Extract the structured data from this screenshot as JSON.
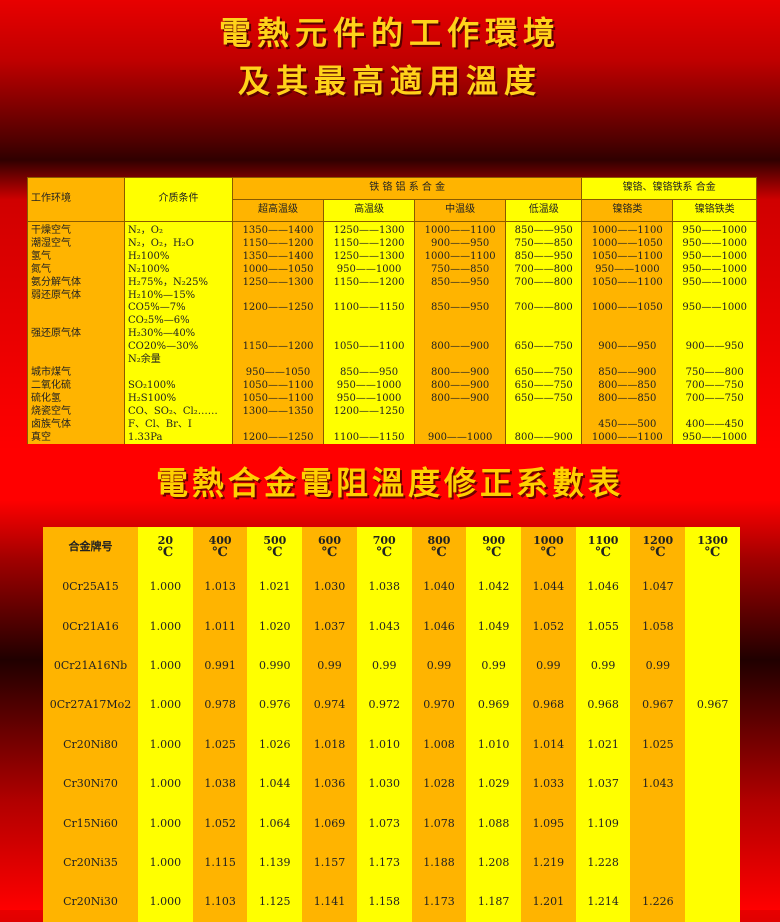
{
  "titles": {
    "main_line1": "電熱元件的工作環境",
    "main_line2": "及其最高適用溫度",
    "second": "電熱合金電阻溫度修正系數表"
  },
  "table1": {
    "headers": {
      "env": "工作环境",
      "medium": "介质条件",
      "fecral_group": "铁 铬 铝 系 合 金",
      "nicr_group": "镍铬、镍铬铁系 合金",
      "sub": [
        "超高温级",
        "高温级",
        "中温级",
        "低温级",
        "镍铬类",
        "镍铬铁类"
      ]
    },
    "rows": [
      [
        "干燥空气",
        "N₂，O₂",
        "1350——1400",
        "1250——1300",
        "1000——1100",
        "850——950",
        "1000——1100",
        "950——1000"
      ],
      [
        "潮湿空气",
        "N₂，O₂，H₂O",
        "1150——1200",
        "1150——1200",
        "900——950",
        "750——850",
        "1000——1050",
        "950——1000"
      ],
      [
        "氢气",
        "H₂100%",
        "1350——1400",
        "1250——1300",
        "1000——1100",
        "850——950",
        "1050——1100",
        "950——1000"
      ],
      [
        "氮气",
        "N₂100%",
        "1000——1050",
        "950——1000",
        "750——850",
        "700——800",
        "950——1000",
        "950——1000"
      ],
      [
        "氨分解气体",
        "H₂75%，N₂25%",
        "1250——1300",
        "1150——1200",
        "850——950",
        "700——800",
        "1050——1100",
        "950——1000"
      ],
      [
        "弱还原气体",
        "H₂10%—15%",
        "",
        "",
        "",
        "",
        "",
        ""
      ],
      [
        "",
        "CO5%—7%",
        "1200——1250",
        "1100——1150",
        "850——950",
        "700——800",
        "1000——1050",
        "950——1000"
      ],
      [
        "",
        "CO₂5%—6%",
        "",
        "",
        "",
        "",
        "",
        ""
      ],
      [
        "强还原气体",
        "H₂30%—40%",
        "",
        "",
        "",
        "",
        "",
        ""
      ],
      [
        "",
        "CO20%—30%",
        "1150——1200",
        "1050——1100",
        "800——900",
        "650——750",
        "900——950",
        "900——950"
      ],
      [
        "",
        "N₂余量",
        "",
        "",
        "",
        "",
        "",
        ""
      ],
      [
        "城市煤气",
        "",
        "950——1050",
        "850——950",
        "800——900",
        "650——750",
        "850——900",
        "750——800"
      ],
      [
        "二氧化硫",
        "SO₂100%",
        "1050——1100",
        "950——1000",
        "800——900",
        "650——750",
        "800——850",
        "700——750"
      ],
      [
        "硫化氢",
        "H₂S100%",
        "1050——1100",
        "950——1000",
        "800——900",
        "650——750",
        "800——850",
        "700——750"
      ],
      [
        "烧瓷空气",
        "CO、SO₂、Cl₂……",
        "1300——1350",
        "1200——1250",
        "",
        "",
        "",
        ""
      ],
      [
        "卤族气体",
        "F、Cl、Br、I",
        "",
        "",
        "",
        "",
        "450——500",
        "400——450"
      ],
      [
        "真空",
        "1.33Pa",
        "1200——1250",
        "1100——1150",
        "900——1000",
        "800——900",
        "1000——1100",
        "950——1000"
      ]
    ]
  },
  "table2": {
    "header_label": "合金牌号",
    "temps": [
      "20",
      "400",
      "500",
      "600",
      "700",
      "800",
      "900",
      "1000",
      "1100",
      "1200",
      "1300"
    ],
    "unit": "℃",
    "rows": [
      [
        "0Cr25A15",
        "1.000",
        "1.013",
        "1.021",
        "1.030",
        "1.038",
        "1.040",
        "1.042",
        "1.044",
        "1.046",
        "1.047",
        ""
      ],
      [
        "0Cr21A16",
        "1.000",
        "1.011",
        "1.020",
        "1.037",
        "1.043",
        "1.046",
        "1.049",
        "1.052",
        "1.055",
        "1.058",
        ""
      ],
      [
        "0Cr21A16Nb",
        "1.000",
        "0.991",
        "0.990",
        "0.99",
        "0.99",
        "0.99",
        "0.99",
        "0.99",
        "0.99",
        "0.99",
        ""
      ],
      [
        "0Cr27A17Mo2",
        "1.000",
        "0.978",
        "0.976",
        "0.974",
        "0.972",
        "0.970",
        "0.969",
        "0.968",
        "0.968",
        "0.967",
        "0.967"
      ],
      [
        "Cr20Ni80",
        "1.000",
        "1.025",
        "1.026",
        "1.018",
        "1.010",
        "1.008",
        "1.010",
        "1.014",
        "1.021",
        "1.025",
        ""
      ],
      [
        "Cr30Ni70",
        "1.000",
        "1.038",
        "1.044",
        "1.036",
        "1.030",
        "1.028",
        "1.029",
        "1.033",
        "1.037",
        "1.043",
        ""
      ],
      [
        "Cr15Ni60",
        "1.000",
        "1.052",
        "1.064",
        "1.069",
        "1.073",
        "1.078",
        "1.088",
        "1.095",
        "1.109",
        "",
        ""
      ],
      [
        "Cr20Ni35",
        "1.000",
        "1.115",
        "1.139",
        "1.157",
        "1.173",
        "1.188",
        "1.208",
        "1.219",
        "1.228",
        "",
        ""
      ],
      [
        "Cr20Ni30",
        "1.000",
        "1.103",
        "1.125",
        "1.141",
        "1.158",
        "1.173",
        "1.187",
        "1.201",
        "1.214",
        "1.226",
        ""
      ]
    ]
  },
  "colors": {
    "orange": "#ffb400",
    "yellow": "#ffff00",
    "title": "#ffd21a",
    "background": "#e80000"
  }
}
